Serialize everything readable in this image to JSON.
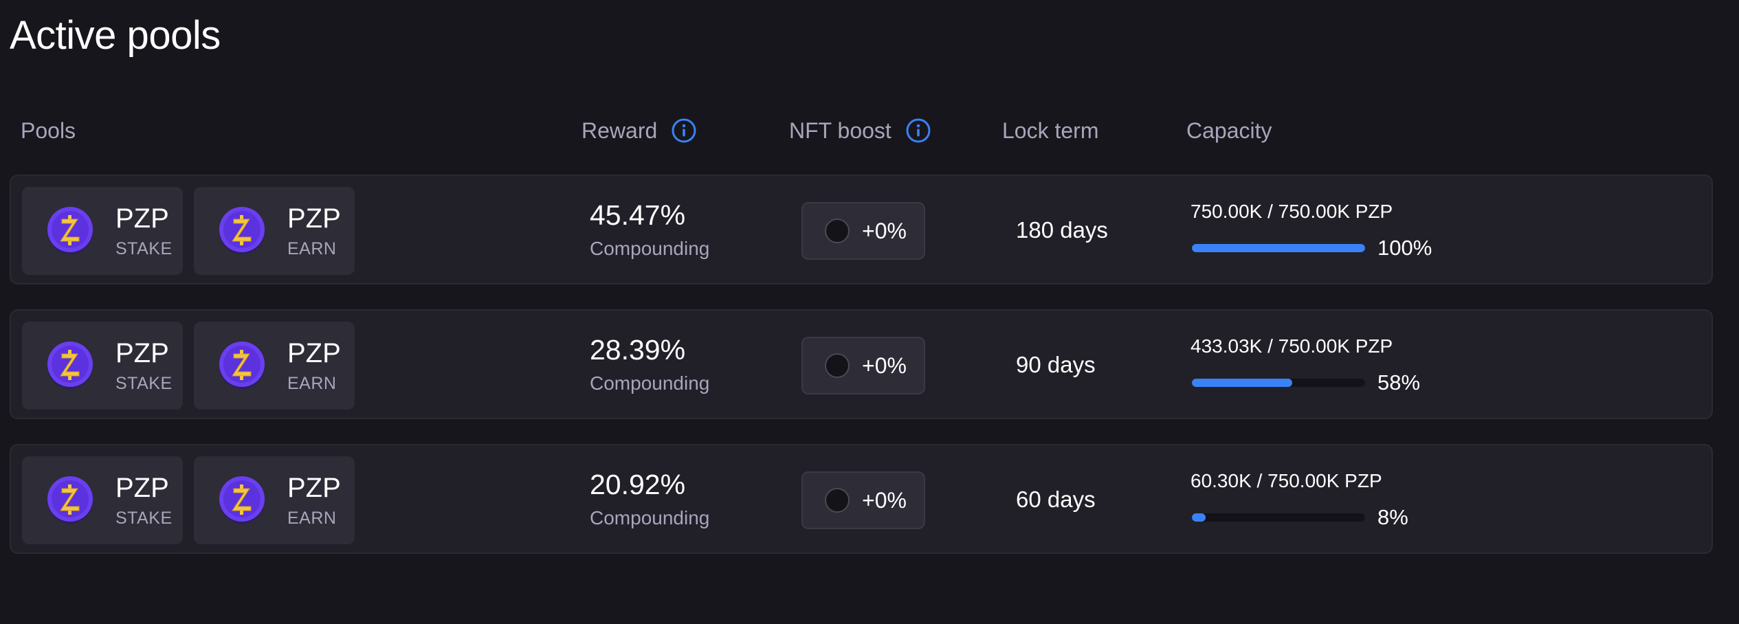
{
  "page": {
    "title": "Active pools"
  },
  "columns": {
    "pools": "Pools",
    "reward": "Reward",
    "nft_boost": "NFT boost",
    "lock_term": "Lock term",
    "capacity": "Capacity"
  },
  "icons": {
    "info": "info-icon",
    "coin": "pzp-coin-icon"
  },
  "colors": {
    "accent": "#3b82f6",
    "coin_purple": "#6a3ff0",
    "coin_gold": "#f5c542"
  },
  "pools": [
    {
      "stake": {
        "symbol": "PZP",
        "kind": "STAKE"
      },
      "earn": {
        "symbol": "PZP",
        "kind": "EARN"
      },
      "reward": "45.47%",
      "reward_type": "Compounding",
      "boost": "+0%",
      "lock_term": "180 days",
      "capacity_text": "750.00K / 750.00K PZP",
      "capacity_percent": "100%",
      "capacity_fraction": 1.0
    },
    {
      "stake": {
        "symbol": "PZP",
        "kind": "STAKE"
      },
      "earn": {
        "symbol": "PZP",
        "kind": "EARN"
      },
      "reward": "28.39%",
      "reward_type": "Compounding",
      "boost": "+0%",
      "lock_term": "90 days",
      "capacity_text": "433.03K / 750.00K PZP",
      "capacity_percent": "58%",
      "capacity_fraction": 0.58
    },
    {
      "stake": {
        "symbol": "PZP",
        "kind": "STAKE"
      },
      "earn": {
        "symbol": "PZP",
        "kind": "EARN"
      },
      "reward": "20.92%",
      "reward_type": "Compounding",
      "boost": "+0%",
      "lock_term": "60 days",
      "capacity_text": "60.30K / 750.00K PZP",
      "capacity_percent": "8%",
      "capacity_fraction": 0.08
    }
  ]
}
